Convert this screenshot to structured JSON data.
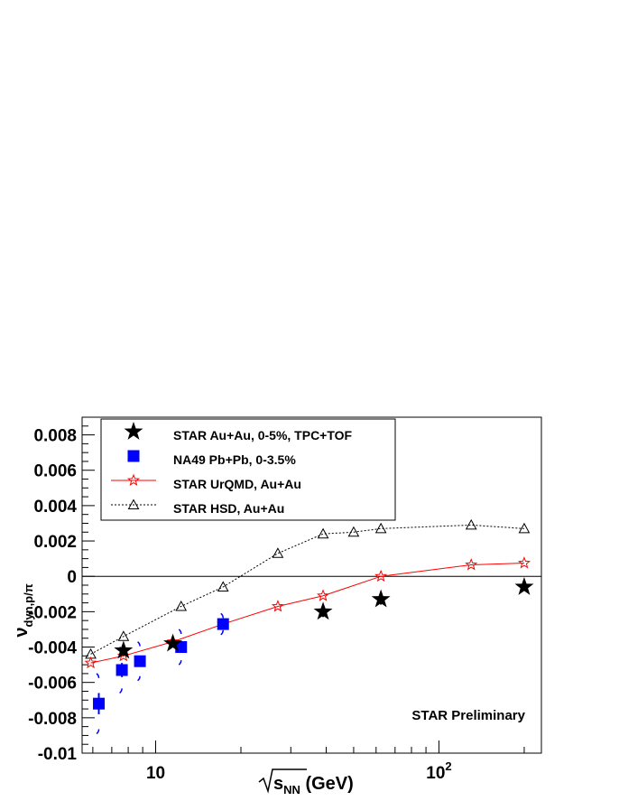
{
  "chart_data": {
    "type": "scatter",
    "title": "",
    "xlabel_prefix": "s",
    "xlabel_sub": "NN",
    "xlabel_suffix": " (GeV)",
    "ylabel_main": "ν",
    "ylabel_sub": "dyn,p/π",
    "x_scale": "log",
    "xlim": [
      5.5,
      230
    ],
    "ylim": [
      -0.01,
      0.009
    ],
    "x_ticks": [
      {
        "value": 10,
        "base": "10",
        "exp": ""
      },
      {
        "value": 100,
        "base": "10",
        "exp": "2"
      }
    ],
    "y_ticks": [
      {
        "value": 0.008,
        "label": "0.008"
      },
      {
        "value": 0.006,
        "label": "0.006"
      },
      {
        "value": 0.004,
        "label": "0.004"
      },
      {
        "value": 0.002,
        "label": "0.002"
      },
      {
        "value": 0,
        "label": "0"
      },
      {
        "value": -0.002,
        "label": "-0.002"
      },
      {
        "value": -0.004,
        "label": "-0.004"
      },
      {
        "value": -0.006,
        "label": "-0.006"
      },
      {
        "value": -0.008,
        "label": "-0.008"
      },
      {
        "value": -0.01,
        "label": "-0.01"
      }
    ],
    "annotation": "STAR Preliminary",
    "legend_position": "top-left",
    "series": [
      {
        "name": "STAR Au+Au, 0-5%, TPC+TOF",
        "marker": "star-filled",
        "color": "#000000",
        "x": [
          7.7,
          11.5,
          39,
          62.4,
          200
        ],
        "y": [
          -0.0042,
          -0.0038,
          -0.002,
          -0.0013,
          -0.0006
        ],
        "err": [
          0.0003,
          0.0002,
          0.0003,
          0.0003,
          0.0001
        ]
      },
      {
        "name": "NA49 Pb+Pb, 0-3.5%",
        "marker": "square",
        "color": "#0000ff",
        "x": [
          6.3,
          7.6,
          8.8,
          12.3,
          17.3
        ],
        "y": [
          -0.0072,
          -0.0053,
          -0.0048,
          -0.004,
          -0.0027
        ],
        "err": [
          0.0006,
          0.0004,
          0.0003,
          0.0003,
          0.0003
        ],
        "sys": [
          0.0017,
          0.0013,
          0.0011,
          0.001,
          0.0006
        ]
      },
      {
        "name": "STAR UrQMD, Au+Au",
        "marker": "star-open",
        "line": "solid",
        "color": "#ff0000",
        "x": [
          5.9,
          7.7,
          11.5,
          17.3,
          27,
          39,
          62.4,
          130,
          200
        ],
        "y": [
          -0.0049,
          -0.0045,
          -0.0037,
          -0.0027,
          -0.0017,
          -0.0011,
          0.0,
          0.00065,
          0.00075
        ]
      },
      {
        "name": "STAR HSD, Au+Au",
        "marker": "triangle-open",
        "line": "dotted",
        "color": "#000000",
        "x": [
          5.9,
          7.7,
          12.3,
          17.3,
          27,
          39,
          50,
          62.4,
          130,
          200
        ],
        "y": [
          -0.0044,
          -0.0034,
          -0.0017,
          -0.0006,
          0.0013,
          0.0024,
          0.0025,
          0.0027,
          0.0029,
          0.0027
        ]
      }
    ]
  }
}
